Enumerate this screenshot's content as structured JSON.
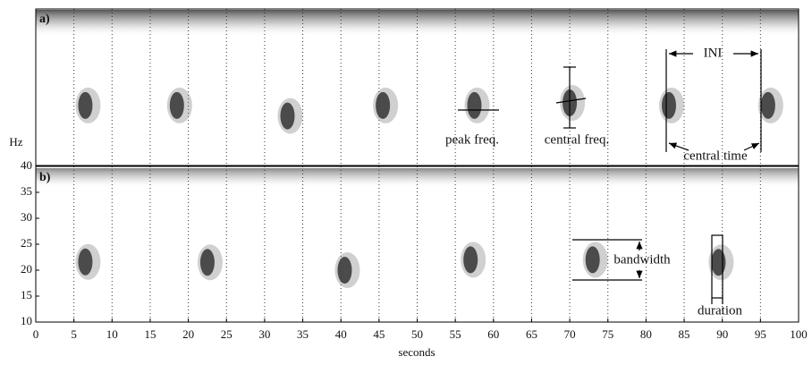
{
  "chart_data": [
    {
      "type": "spectrogram",
      "label": "a)",
      "x": [
        6.5,
        18.5,
        33,
        45.5,
        57.5,
        70,
        83,
        96
      ],
      "values": [
        21.5,
        21.5,
        19.5,
        21.5,
        21.5,
        22,
        21.5,
        21.5
      ],
      "xlim": [
        0,
        100
      ],
      "ylim": [
        10,
        40
      ],
      "grid_x": [
        5,
        10,
        15,
        20,
        25,
        30,
        35,
        40,
        45,
        50,
        55,
        60,
        65,
        70,
        75,
        80,
        85,
        90,
        95
      ],
      "annotations": [
        "peak freq.",
        "central freq.",
        "central time",
        "INI"
      ]
    },
    {
      "type": "spectrogram",
      "label": "b)",
      "x": [
        6.5,
        22.5,
        40.5,
        57,
        73,
        89.5
      ],
      "values": [
        21.6,
        21.5,
        20,
        22,
        22,
        21.5
      ],
      "xlim": [
        0,
        100
      ],
      "ylim": [
        10,
        40
      ],
      "xticks": [
        0,
        5,
        10,
        15,
        20,
        25,
        30,
        35,
        40,
        45,
        50,
        55,
        60,
        65,
        70,
        75,
        80,
        85,
        90,
        95,
        100
      ],
      "yticks": [
        10,
        15,
        20,
        25,
        30,
        35,
        40
      ],
      "grid_x": [
        5,
        10,
        15,
        20,
        25,
        30,
        35,
        40,
        45,
        50,
        55,
        60,
        65,
        70,
        75,
        80,
        85,
        90,
        95
      ],
      "xlabel": "seconds",
      "ylabel": "Hz",
      "annotations": [
        "bandwidth",
        "duration"
      ]
    }
  ]
}
